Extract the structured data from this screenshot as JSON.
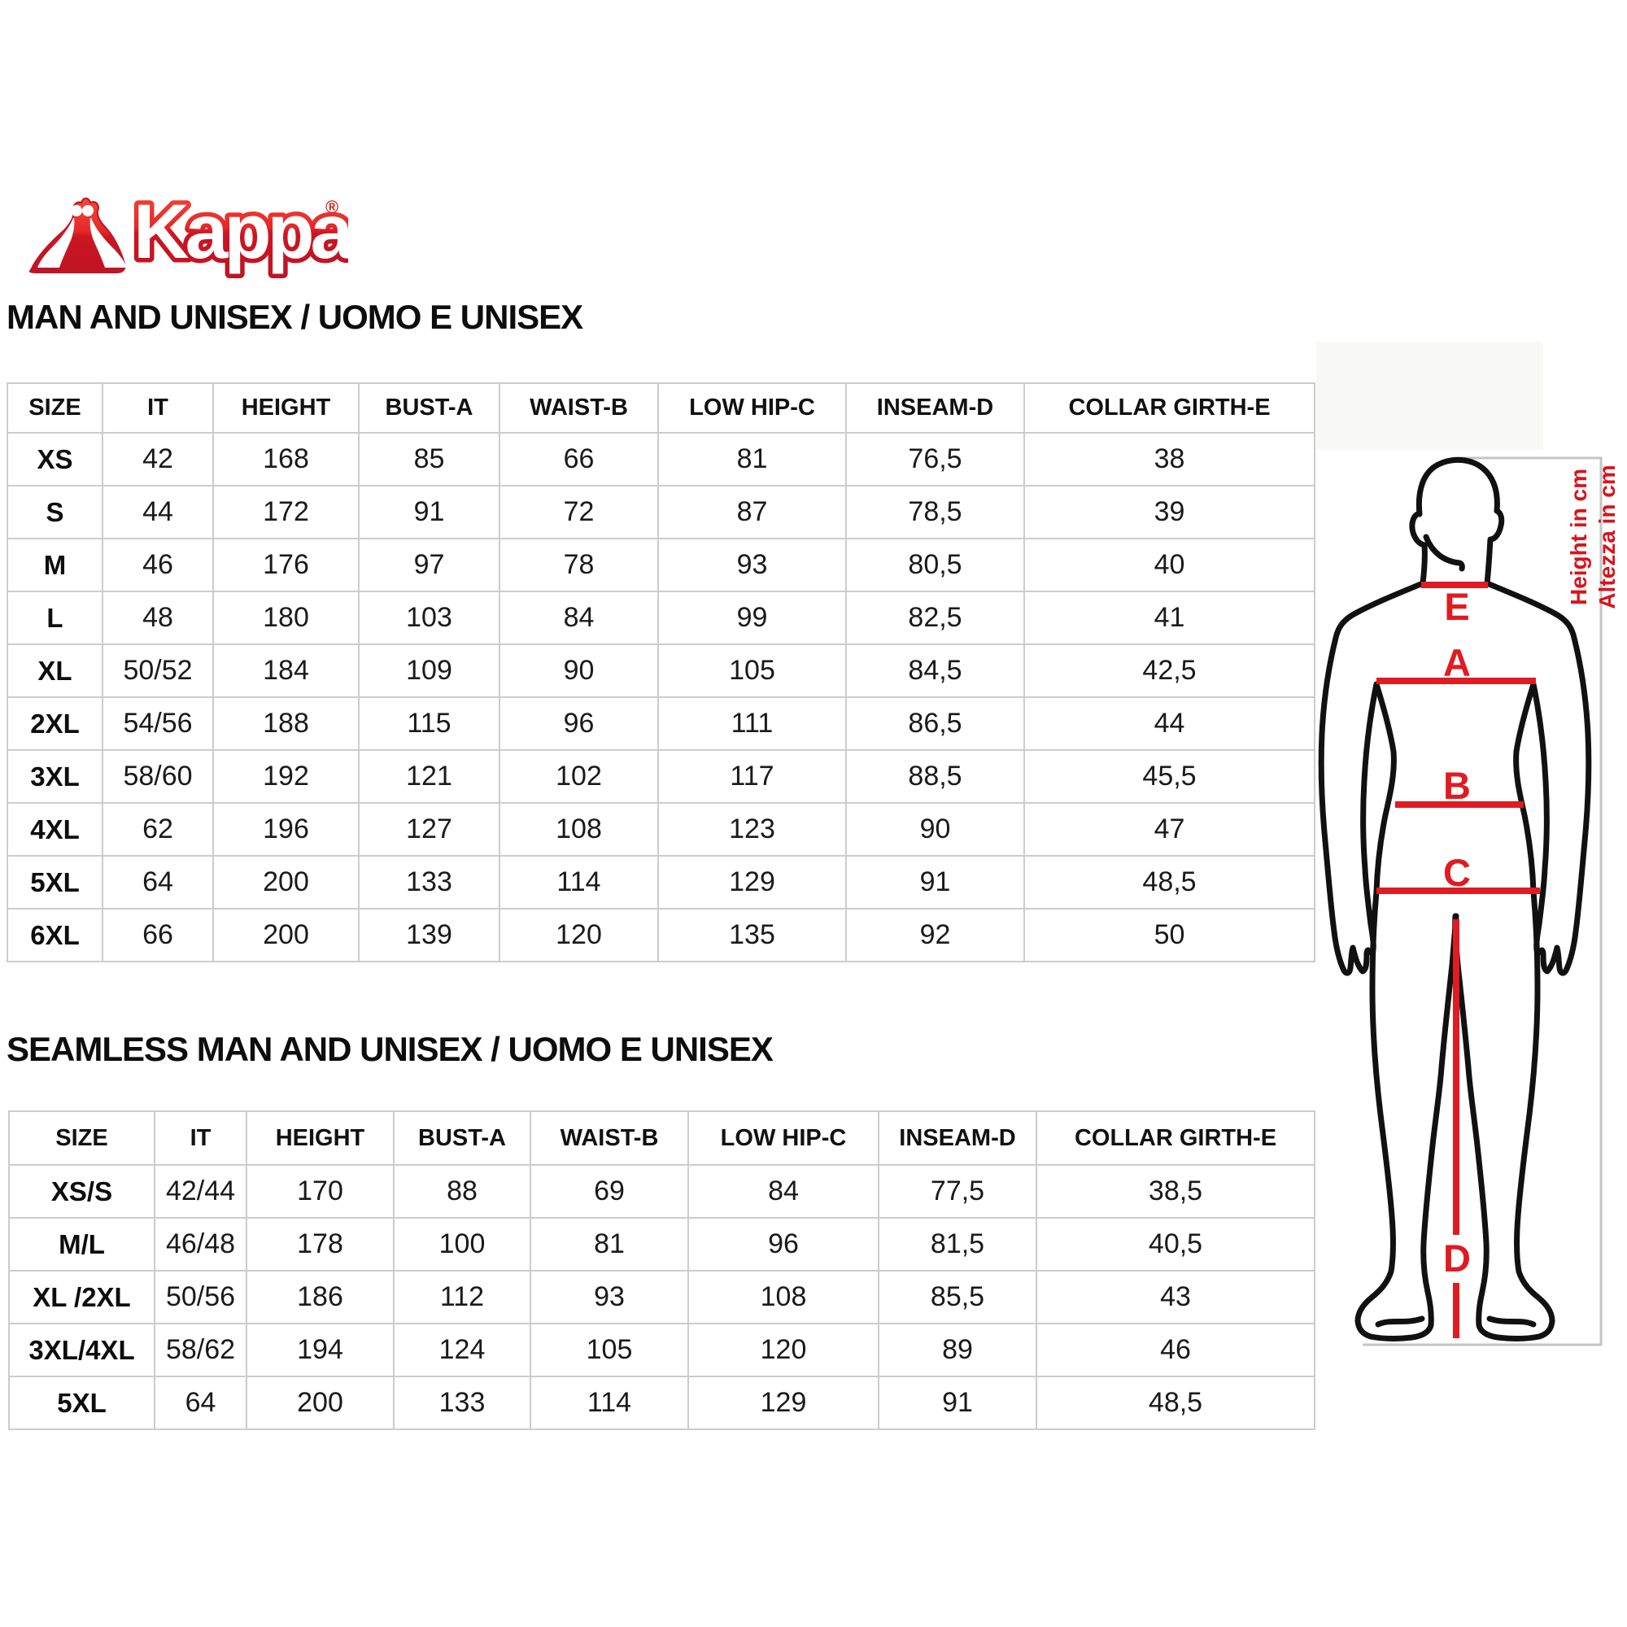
{
  "logo": {
    "brand": "Kappa",
    "registered": "®"
  },
  "sections": [
    {
      "heading": "MAN AND UNISEX / UOMO E UNISEX",
      "columns": [
        "SIZE",
        "IT",
        "HEIGHT",
        "BUST-A",
        "WAIST-B",
        "LOW HIP-C",
        "INSEAM-D",
        "COLLAR GIRTH-E"
      ],
      "rows": [
        [
          "XS",
          "42",
          "168",
          "85",
          "66",
          "81",
          "76,5",
          "38"
        ],
        [
          "S",
          "44",
          "172",
          "91",
          "72",
          "87",
          "78,5",
          "39"
        ],
        [
          "M",
          "46",
          "176",
          "97",
          "78",
          "93",
          "80,5",
          "40"
        ],
        [
          "L",
          "48",
          "180",
          "103",
          "84",
          "99",
          "82,5",
          "41"
        ],
        [
          "XL",
          "50/52",
          "184",
          "109",
          "90",
          "105",
          "84,5",
          "42,5"
        ],
        [
          "2XL",
          "54/56",
          "188",
          "115",
          "96",
          "111",
          "86,5",
          "44"
        ],
        [
          "3XL",
          "58/60",
          "192",
          "121",
          "102",
          "117",
          "88,5",
          "45,5"
        ],
        [
          "4XL",
          "62",
          "196",
          "127",
          "108",
          "123",
          "90",
          "47"
        ],
        [
          "5XL",
          "64",
          "200",
          "133",
          "114",
          "129",
          "91",
          "48,5"
        ],
        [
          "6XL",
          "66",
          "200",
          "139",
          "120",
          "135",
          "92",
          "50"
        ]
      ]
    },
    {
      "heading": "SEAMLESS MAN AND UNISEX / UOMO E UNISEX",
      "columns": [
        "SIZE",
        "IT",
        "HEIGHT",
        "BUST-A",
        "WAIST-B",
        "LOW HIP-C",
        "INSEAM-D",
        "COLLAR GIRTH-E"
      ],
      "rows": [
        [
          "XS/S",
          "42/44",
          "170",
          "88",
          "69",
          "84",
          "77,5",
          "38,5"
        ],
        [
          "M/L",
          "46/48",
          "178",
          "100",
          "81",
          "96",
          "81,5",
          "40,5"
        ],
        [
          "XL /2XL",
          "50/56",
          "186",
          "112",
          "93",
          "108",
          "85,5",
          "43"
        ],
        [
          "3XL/4XL",
          "58/62",
          "194",
          "124",
          "105",
          "120",
          "89",
          "46"
        ],
        [
          "5XL",
          "64",
          "200",
          "133",
          "114",
          "129",
          "91",
          "48,5"
        ]
      ]
    }
  ],
  "figure": {
    "labels": {
      "e": "E",
      "a": "A",
      "b": "B",
      "c": "C",
      "d": "D"
    },
    "height_note_en": "Height in cm",
    "height_note_it": "Altezza in cm",
    "accent_color": "#e01b22"
  }
}
